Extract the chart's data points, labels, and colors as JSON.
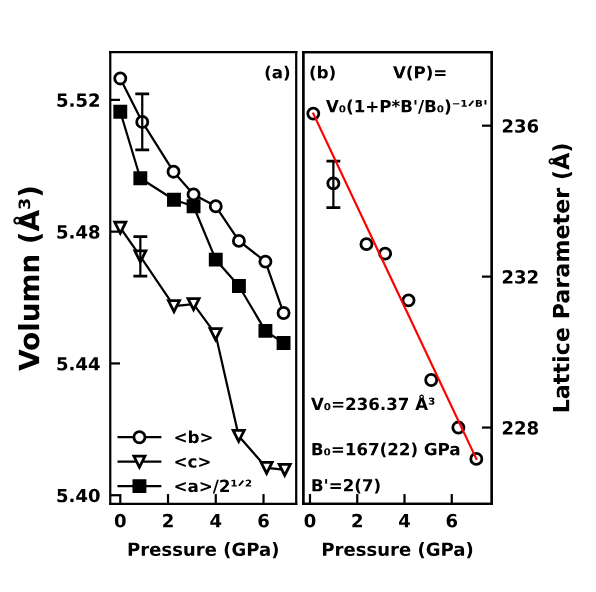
{
  "chart_data": [
    {
      "type": "line",
      "xlabel": "Pressure (GPa)",
      "ylabel": "Volumn (Å³)",
      "xlim": [
        -0.42,
        7.37
      ],
      "xticks": [
        0,
        2,
        4,
        6
      ],
      "ylim": [
        5.3974,
        5.5345
      ],
      "yticks": [
        {
          "value": 5.4,
          "label": "5.40"
        },
        5.44,
        5.48,
        5.52
      ],
      "legend": "bottom left",
      "grid": false,
      "annotations": [
        "(a)"
      ],
      "series": [
        {
          "name": "<b>",
          "color": "#000000",
          "marker": "circle",
          "x": [
            0,
            0.92,
            2.23,
            3.07,
            4.0,
            4.97,
            6.08,
            6.84
          ],
          "values": [
            5.5265,
            5.5133,
            5.4982,
            5.4913,
            5.4877,
            5.4772,
            5.4709,
            5.4553
          ],
          "errors": [
            null,
            0.0085,
            null,
            null,
            null,
            null,
            null,
            null
          ]
        },
        {
          "name": "<c>",
          "color": "#000000",
          "marker": "triangle",
          "x": [
            0,
            0.84,
            2.25,
            3.07,
            3.99,
            4.96,
            6.13,
            6.89
          ],
          "values": [
            5.4812,
            5.4725,
            5.4574,
            5.458,
            5.4489,
            5.418,
            5.4083,
            5.4077
          ],
          "errors": [
            null,
            0.006,
            null,
            null,
            null,
            null,
            null,
            null
          ]
        },
        {
          "name": "<a>/2¹ᐟ²",
          "color": "#000000",
          "marker": "square",
          "x": [
            0,
            0.84,
            2.25,
            3.07,
            4.0,
            4.97,
            6.08,
            6.84
          ],
          "values": [
            5.5164,
            5.4962,
            5.4897,
            5.4877,
            5.4715,
            5.4635,
            5.4499,
            5.4462
          ]
        }
      ]
    },
    {
      "type": "scatter",
      "xlabel": "Pressure (GPa)",
      "y2label": "Lattice Parameter (Å)",
      "xlim": [
        -0.28,
        7.69
      ],
      "xticks": [
        0,
        2,
        4,
        6
      ],
      "y2lim": [
        225.98,
        237.95
      ],
      "y2ticks": [
        228,
        232,
        236
      ],
      "grid": false,
      "annotations": [
        "(b)",
        "V(P)=",
        "V₀(1+P*B'/B₀)⁻¹ᐟᴮ'",
        "V₀=236.37 Å³",
        "B₀=167(22) GPa",
        "B'=2(7)"
      ],
      "series": [
        {
          "type": "scatter",
          "axis": "y2",
          "color": "#000000",
          "marker": "circle",
          "x": [
            0.14,
            0.99,
            2.39,
            3.18,
            4.17,
            5.13,
            6.28,
            7.04
          ],
          "values": [
            236.32,
            234.47,
            232.86,
            232.61,
            231.37,
            229.26,
            228.0,
            227.17
          ],
          "errors": [
            null,
            [
              233.83,
              235.06
            ],
            null,
            null,
            null,
            null,
            null,
            null
          ]
        },
        {
          "type": "line",
          "axis": "y2",
          "color": "#ff0000",
          "marker": "none",
          "x": [
            0.14,
            7.04
          ],
          "values": [
            236.32,
            227.17
          ]
        }
      ]
    }
  ]
}
